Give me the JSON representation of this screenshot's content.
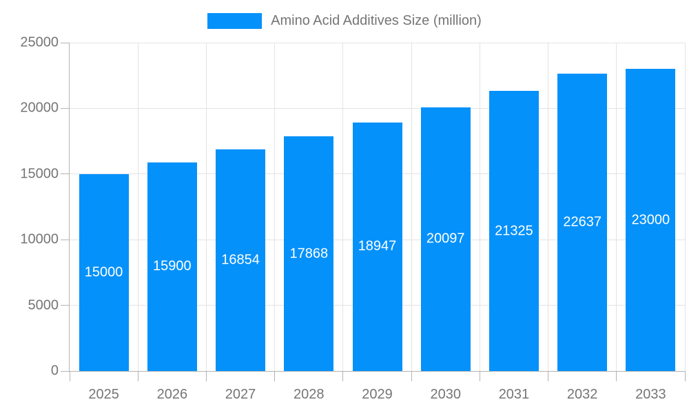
{
  "chart_data": {
    "type": "bar",
    "title": "",
    "legend_label": "Amino Acid Additives Size (million)",
    "legend_position": "top",
    "categories": [
      "2025",
      "2026",
      "2027",
      "2028",
      "2029",
      "2030",
      "2031",
      "2032",
      "2033"
    ],
    "values": [
      15000,
      15900,
      16854,
      17868,
      18947,
      20097,
      21325,
      22637,
      23000
    ],
    "y_ticks": [
      0,
      5000,
      10000,
      15000,
      20000,
      25000
    ],
    "ylim": [
      0,
      25000
    ],
    "xlabel": "",
    "ylabel": "",
    "grid": "on",
    "bar_color": "#0591fa",
    "value_label_color": "#ffffff",
    "axis_text_color": "#757575",
    "grid_color": "#e3e3e3",
    "axis_line_color": "#b3b3b3",
    "background_color": "#ffffff"
  }
}
